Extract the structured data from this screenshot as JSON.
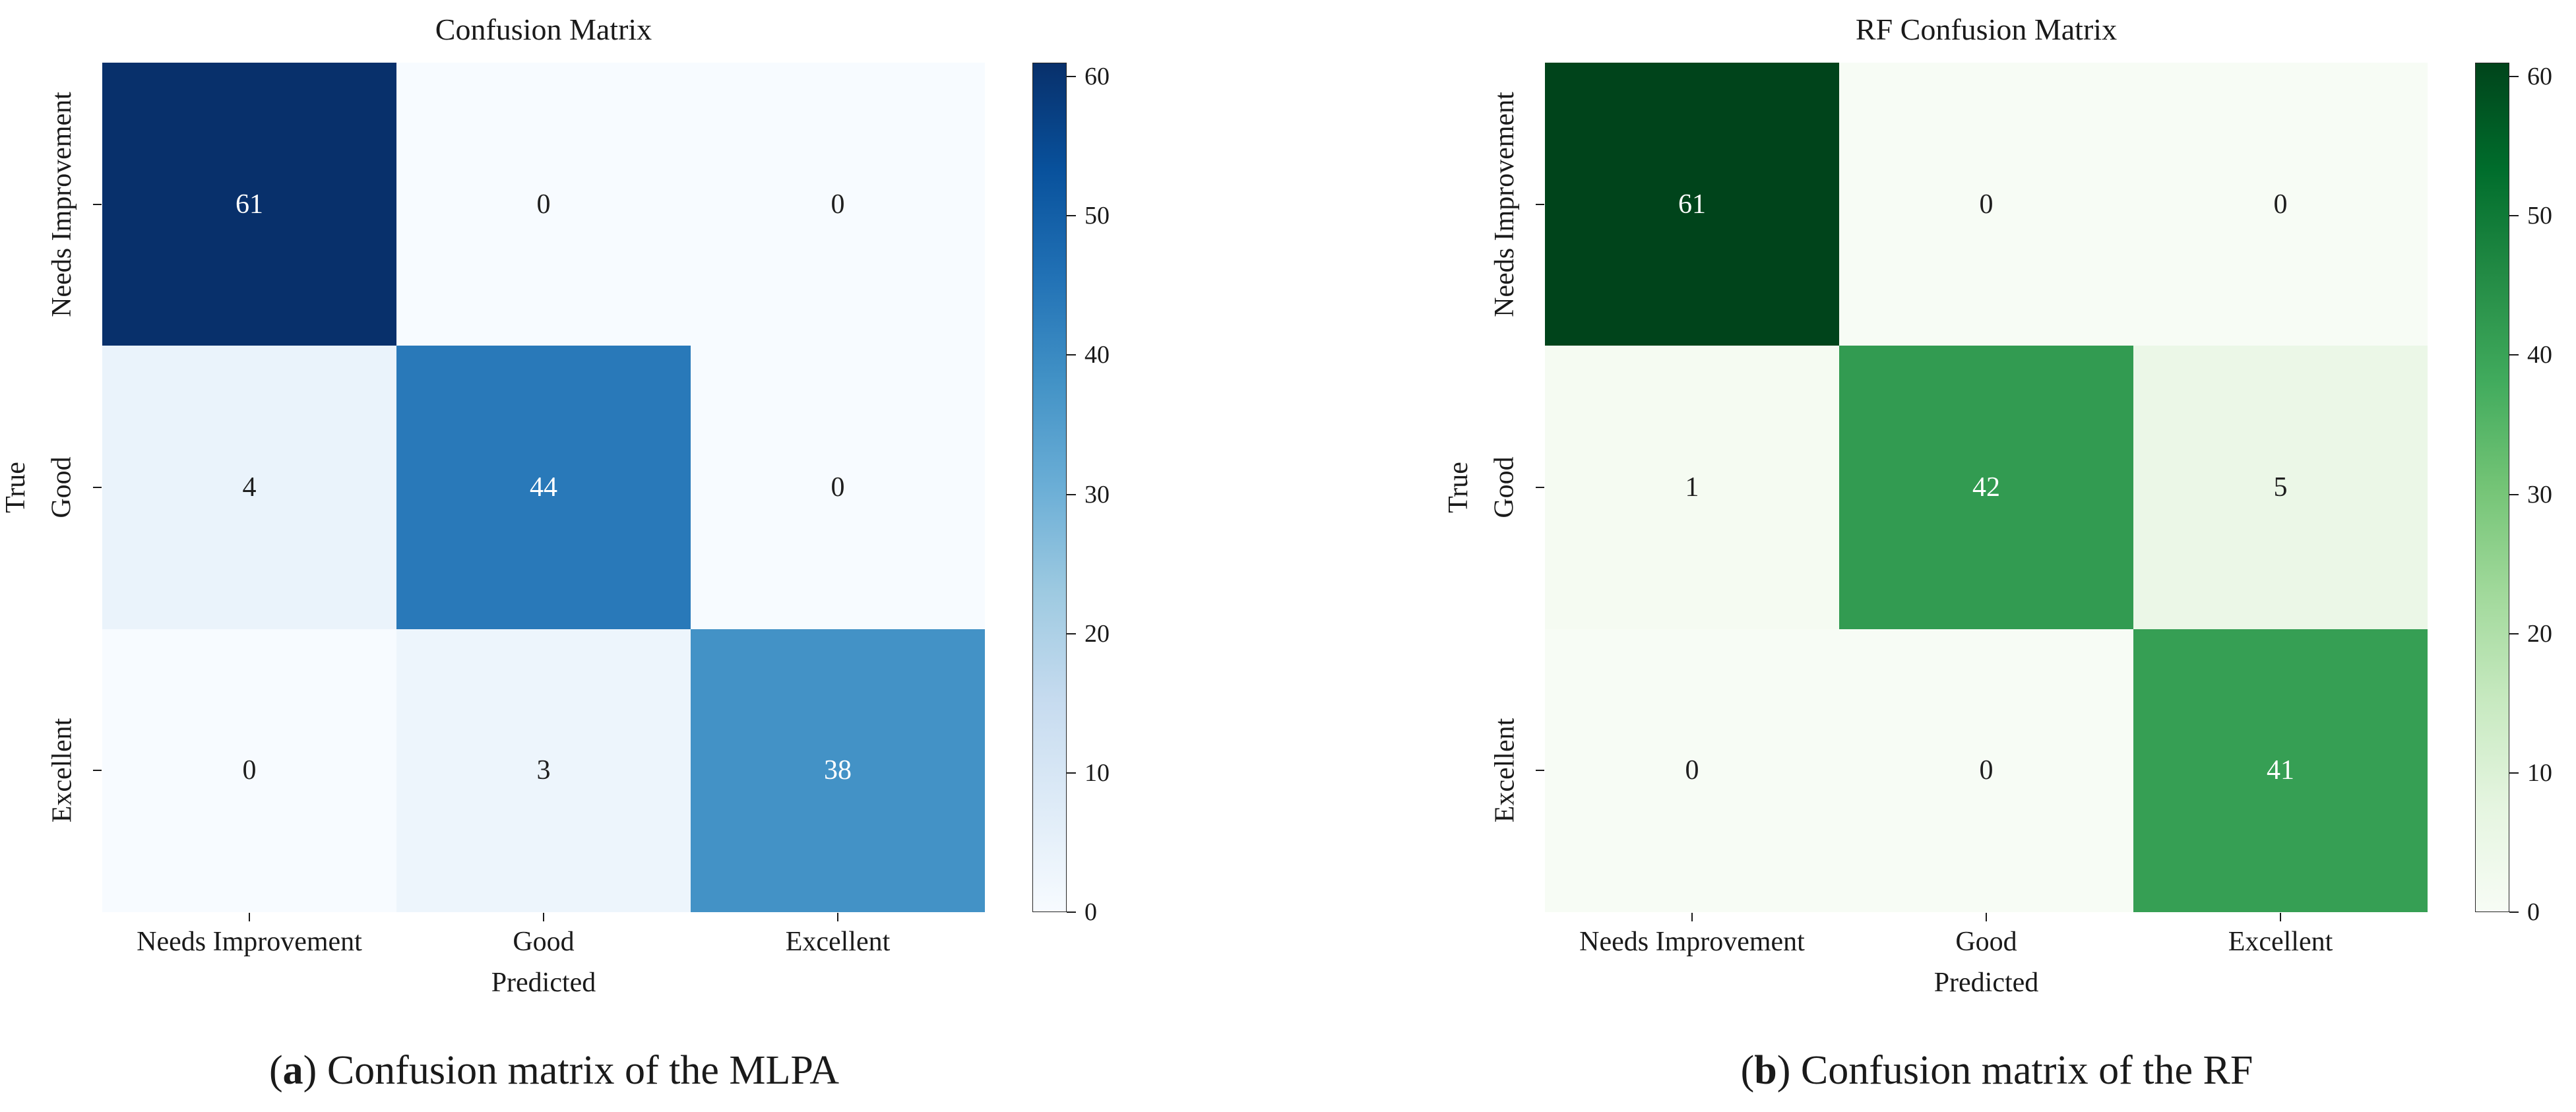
{
  "colors": {
    "background": "#ffffff",
    "text": "#1a1a1a",
    "blues_dark": "#08306b",
    "greens_dark": "#00441b"
  },
  "chart_data": [
    {
      "type": "heatmap",
      "title": "Confusion Matrix",
      "xlabel": "Predicted",
      "ylabel": "True",
      "x_categories": [
        "Needs Improvement",
        "Good",
        "Excellent"
      ],
      "y_categories": [
        "Needs Improvement",
        "Good",
        "Excellent"
      ],
      "matrix": [
        [
          61,
          0,
          0
        ],
        [
          4,
          44,
          0
        ],
        [
          0,
          3,
          38
        ]
      ],
      "vmin": 0,
      "vmax": 61,
      "colormap": "Blues",
      "colormap_stops": [
        "#f7fbff",
        "#deebf7",
        "#c6dbef",
        "#9ecae1",
        "#6baed6",
        "#4292c6",
        "#2171b5",
        "#08519c",
        "#08306b"
      ],
      "colorbar_ticks": [
        0,
        10,
        20,
        30,
        40,
        50,
        60
      ],
      "legend_position": "right",
      "grid": false,
      "caption_pre": "(",
      "caption_bold": "a",
      "caption_post": ") Confusion matrix of the MLPA"
    },
    {
      "type": "heatmap",
      "title": "RF Confusion Matrix",
      "xlabel": "Predicted",
      "ylabel": "True",
      "x_categories": [
        "Needs Improvement",
        "Good",
        "Excellent"
      ],
      "y_categories": [
        "Needs Improvement",
        "Good",
        "Excellent"
      ],
      "matrix": [
        [
          61,
          0,
          0
        ],
        [
          1,
          42,
          5
        ],
        [
          0,
          0,
          41
        ]
      ],
      "vmin": 0,
      "vmax": 61,
      "colormap": "Greens",
      "colormap_stops": [
        "#f7fcf5",
        "#e5f5e0",
        "#c7e9c0",
        "#a1d99b",
        "#74c476",
        "#41ab5d",
        "#238b45",
        "#006d2c",
        "#00441b"
      ],
      "colorbar_ticks": [
        0,
        10,
        20,
        30,
        40,
        50,
        60
      ],
      "legend_position": "right",
      "grid": false,
      "caption_pre": "(",
      "caption_bold": "b",
      "caption_post": ") Confusion matrix of the RF"
    }
  ]
}
